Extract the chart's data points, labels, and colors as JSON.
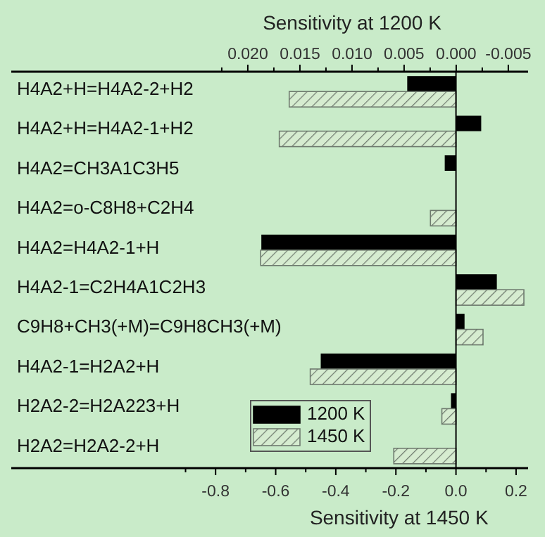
{
  "chart_data": {
    "type": "bar",
    "orientation": "horizontal",
    "xlabel": "Sensitivity at 1450 K",
    "x2label": "Sensitivity at 1200 K",
    "categories": [
      "H4A2+H=H4A2-2+H2",
      "H4A2+H=H4A2-1+H2",
      "H4A2=CH3A1C3H5",
      "H4A2=o-C8H8+C2H4",
      "H4A2=H4A2-1+H",
      "H4A2-1=C2H4A1C2H3",
      "C9H8+CH3(+M)=C9H8CH3(+M)",
      "H4A2-1=H2A2+H",
      "H2A2-2=H2A223+H",
      "H2A2=H2A2-2+H"
    ],
    "series": [
      {
        "name": "1200 K",
        "color": "#000000",
        "axis": "x2",
        "values": [
          0.0047,
          -0.0024,
          0.0011,
          null,
          0.0187,
          -0.0039,
          -0.0008,
          0.013,
          0.0005,
          null
        ]
      },
      {
        "name": "1450 K",
        "color": "#6e7a6e",
        "values": [
          -0.555,
          -0.588,
          null,
          -0.085,
          -0.65,
          0.226,
          0.09,
          -0.485,
          -0.047,
          -0.207
        ]
      }
    ],
    "xlim": [
      -1.48,
      0.24
    ],
    "xticks": [
      {
        "value": -0.9,
        "label": null
      },
      -0.8,
      {
        "value": -0.7,
        "label": null
      },
      -0.6,
      {
        "value": -0.5,
        "label": null
      },
      -0.4,
      {
        "value": -0.3,
        "label": null
      },
      -0.2,
      {
        "value": -0.1,
        "label": null
      },
      {
        "value": 0,
        "label": "0.0"
      },
      {
        "value": 0.1,
        "label": null
      },
      0.2
    ],
    "x2lim": [
      0.0427,
      -0.0069
    ],
    "x2ticks": [
      {
        "value": 0.0225,
        "label": null
      },
      {
        "value": 0.02,
        "label": "0.020"
      },
      {
        "value": 0.0175,
        "label": null
      },
      {
        "value": 0.015,
        "label": "0.015"
      },
      {
        "value": 0.0125,
        "label": null
      },
      {
        "value": 0.01,
        "label": "0.010"
      },
      {
        "value": 0.0075,
        "label": null
      },
      {
        "value": 0.005,
        "label": "0.005"
      },
      {
        "value": 0.0025,
        "label": null
      },
      {
        "value": 0,
        "label": "0.000"
      },
      {
        "value": -0.0025,
        "label": null
      },
      {
        "value": -0.005,
        "label": "-0.005"
      }
    ],
    "ref_lines": [
      {
        "axis": "x",
        "value": 0
      }
    ],
    "legend": "bottom",
    "grid": false
  }
}
